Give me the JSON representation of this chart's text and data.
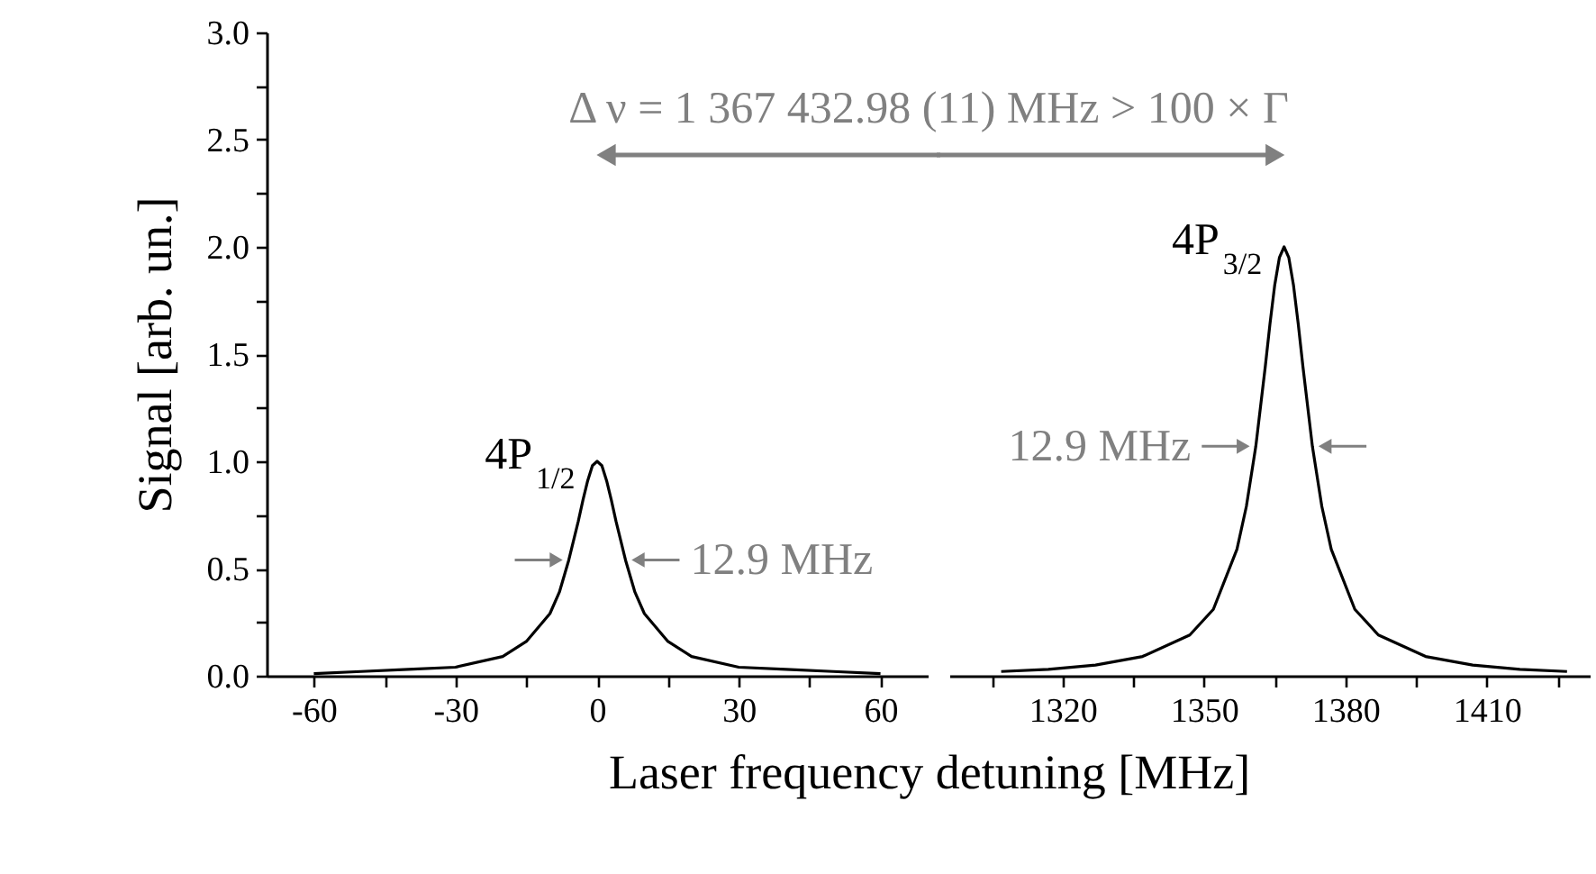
{
  "chart_data": [
    {
      "type": "line",
      "xlabel": "Laser frequency detuning [MHz]",
      "ylabel": "Signal [arb. un.]",
      "color": "#000000",
      "x": [
        -60,
        -50,
        -40,
        -30,
        -20,
        -15,
        -10,
        -8,
        -6,
        -4,
        -3,
        -2,
        -1,
        0,
        1,
        2,
        3,
        4,
        6,
        8,
        10,
        15,
        20,
        30,
        40,
        50,
        60
      ],
      "values": [
        0.01,
        0.02,
        0.03,
        0.04,
        0.09,
        0.16,
        0.29,
        0.39,
        0.54,
        0.72,
        0.82,
        0.91,
        0.98,
        1.0,
        0.98,
        0.91,
        0.82,
        0.72,
        0.54,
        0.39,
        0.29,
        0.16,
        0.09,
        0.04,
        0.03,
        0.02,
        0.01
      ],
      "xlim": [
        -70,
        70
      ],
      "xticks": [
        -60,
        {
          "value": -45,
          "label": null
        },
        -30,
        {
          "value": -15,
          "label": null
        },
        0,
        {
          "value": 15,
          "label": null
        },
        30,
        {
          "value": 45,
          "label": null
        },
        60
      ],
      "ylim": [
        0,
        3
      ],
      "yticks": [
        {
          "value": 0,
          "label": "0.0"
        },
        {
          "value": 0.25,
          "label": null
        },
        {
          "value": 0.5,
          "label": "0.5"
        },
        {
          "value": 0.75,
          "label": null
        },
        {
          "value": 1,
          "label": "1.0"
        },
        {
          "value": 1.25,
          "label": null
        },
        {
          "value": 1.5,
          "label": "1.5"
        },
        {
          "value": 1.75,
          "label": null
        },
        {
          "value": 2,
          "label": "2.0"
        },
        {
          "value": 2.25,
          "label": null
        },
        {
          "value": 2.5,
          "label": "2.5"
        },
        {
          "value": 2.75,
          "label": null
        },
        {
          "value": 3,
          "label": "3.0"
        }
      ],
      "annotations": [
        "Δ ν = 1 367 432.98 (11) MHz > 100 × Γ",
        {
          "text": "4P$_{1/2}$",
          "x": 0,
          "y": 1.0
        },
        {
          "text": "12.9 MHz",
          "x": 6,
          "y": 0.54
        }
      ]
    },
    {
      "type": "line",
      "color": "#000000",
      "tick_labels": "x",
      "x": [
        1307,
        1317,
        1327,
        1337,
        1347,
        1352,
        1357,
        1359,
        1361,
        1363,
        1364,
        1365,
        1366,
        1367,
        1368,
        1369,
        1370,
        1371,
        1373,
        1375,
        1377,
        1382,
        1387,
        1397,
        1407,
        1417,
        1427
      ],
      "values": [
        0.02,
        0.03,
        0.05,
        0.09,
        0.19,
        0.31,
        0.59,
        0.79,
        1.07,
        1.44,
        1.64,
        1.82,
        1.95,
        2.0,
        1.95,
        1.82,
        1.64,
        1.44,
        1.07,
        0.79,
        0.59,
        0.31,
        0.19,
        0.09,
        0.05,
        0.03,
        0.02
      ],
      "xlim": [
        1296,
        1432
      ],
      "xticks": [
        {
          "value": 1305,
          "label": null
        },
        1320,
        {
          "value": 1335,
          "label": null
        },
        1350,
        {
          "value": 1365,
          "label": null
        },
        1380,
        {
          "value": 1395,
          "label": null
        },
        1410,
        {
          "value": 1425,
          "label": null
        }
      ],
      "ylim": [
        0,
        3
      ],
      "annotations": [
        {
          "text": "4P$_{3/2}$",
          "x": 1367,
          "y": 2.0
        },
        {
          "text": "12.9 MHz",
          "x": 1361,
          "y": 1.07
        }
      ]
    }
  ]
}
